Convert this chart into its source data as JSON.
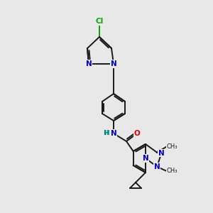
{
  "background_color": "#e8e8e8",
  "bond_color": "#1a1a1a",
  "atom_colors": {
    "N": "#0000cc",
    "O": "#dd0000",
    "Cl": "#00aa00",
    "C": "#1a1a1a",
    "H": "#008888"
  },
  "figsize": [
    3.0,
    3.0
  ],
  "dpi": 100
}
